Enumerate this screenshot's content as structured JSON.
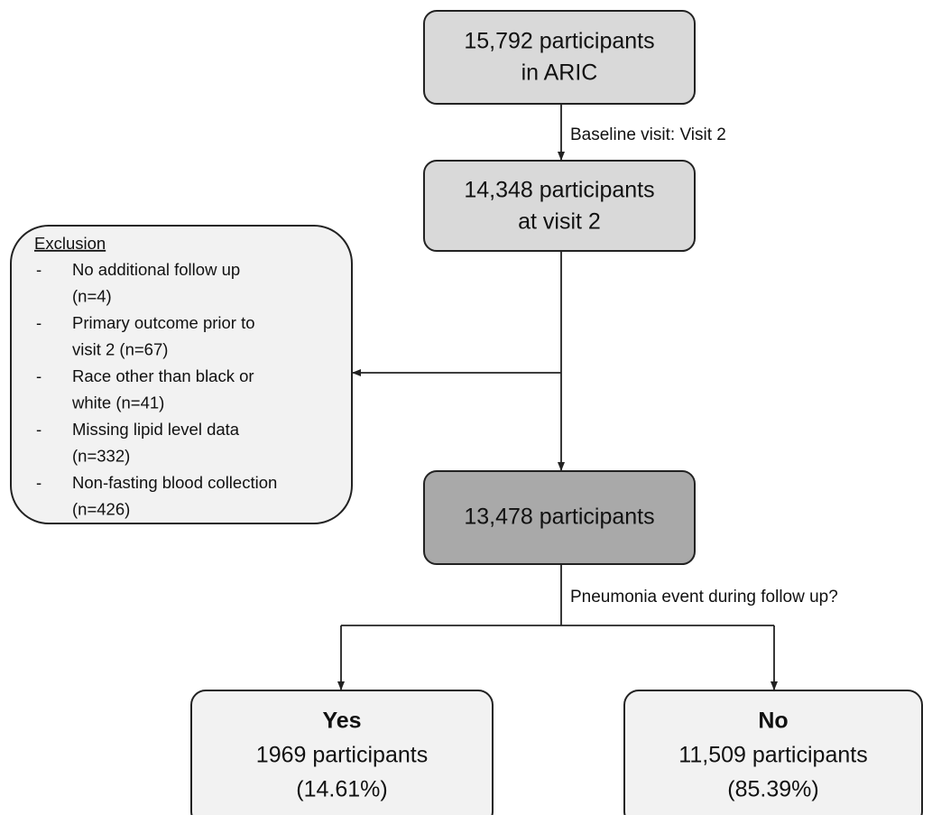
{
  "nodes": [
    {
      "lines": [
        "15,792 participants",
        "in ARIC"
      ]
    },
    {
      "lines": [
        "14,348 participants",
        "at visit 2"
      ]
    },
    {
      "lines": [
        "13,478 participants"
      ]
    }
  ],
  "edge_labels": [
    "Baseline visit: Visit 2",
    "Pneumonia event during follow up?"
  ],
  "exclusion": {
    "title": "Exclusion",
    "items": [
      {
        "lines": [
          "No additional follow up",
          "(n=4)"
        ]
      },
      {
        "lines": [
          "Primary outcome prior to",
          "visit 2 (n=67)"
        ]
      },
      {
        "lines": [
          "Race other than black or",
          "white (n=41)"
        ]
      },
      {
        "lines": [
          "Missing lipid level data",
          "(n=332)"
        ]
      },
      {
        "lines": [
          "Non-fasting blood collection",
          "(n=426)"
        ]
      }
    ]
  },
  "outcomes": [
    {
      "heading": "Yes",
      "lines": [
        "1969 participants",
        "(14.61%)"
      ]
    },
    {
      "heading": "No",
      "lines": [
        "11,509 participants",
        "(85.39%)"
      ]
    }
  ]
}
